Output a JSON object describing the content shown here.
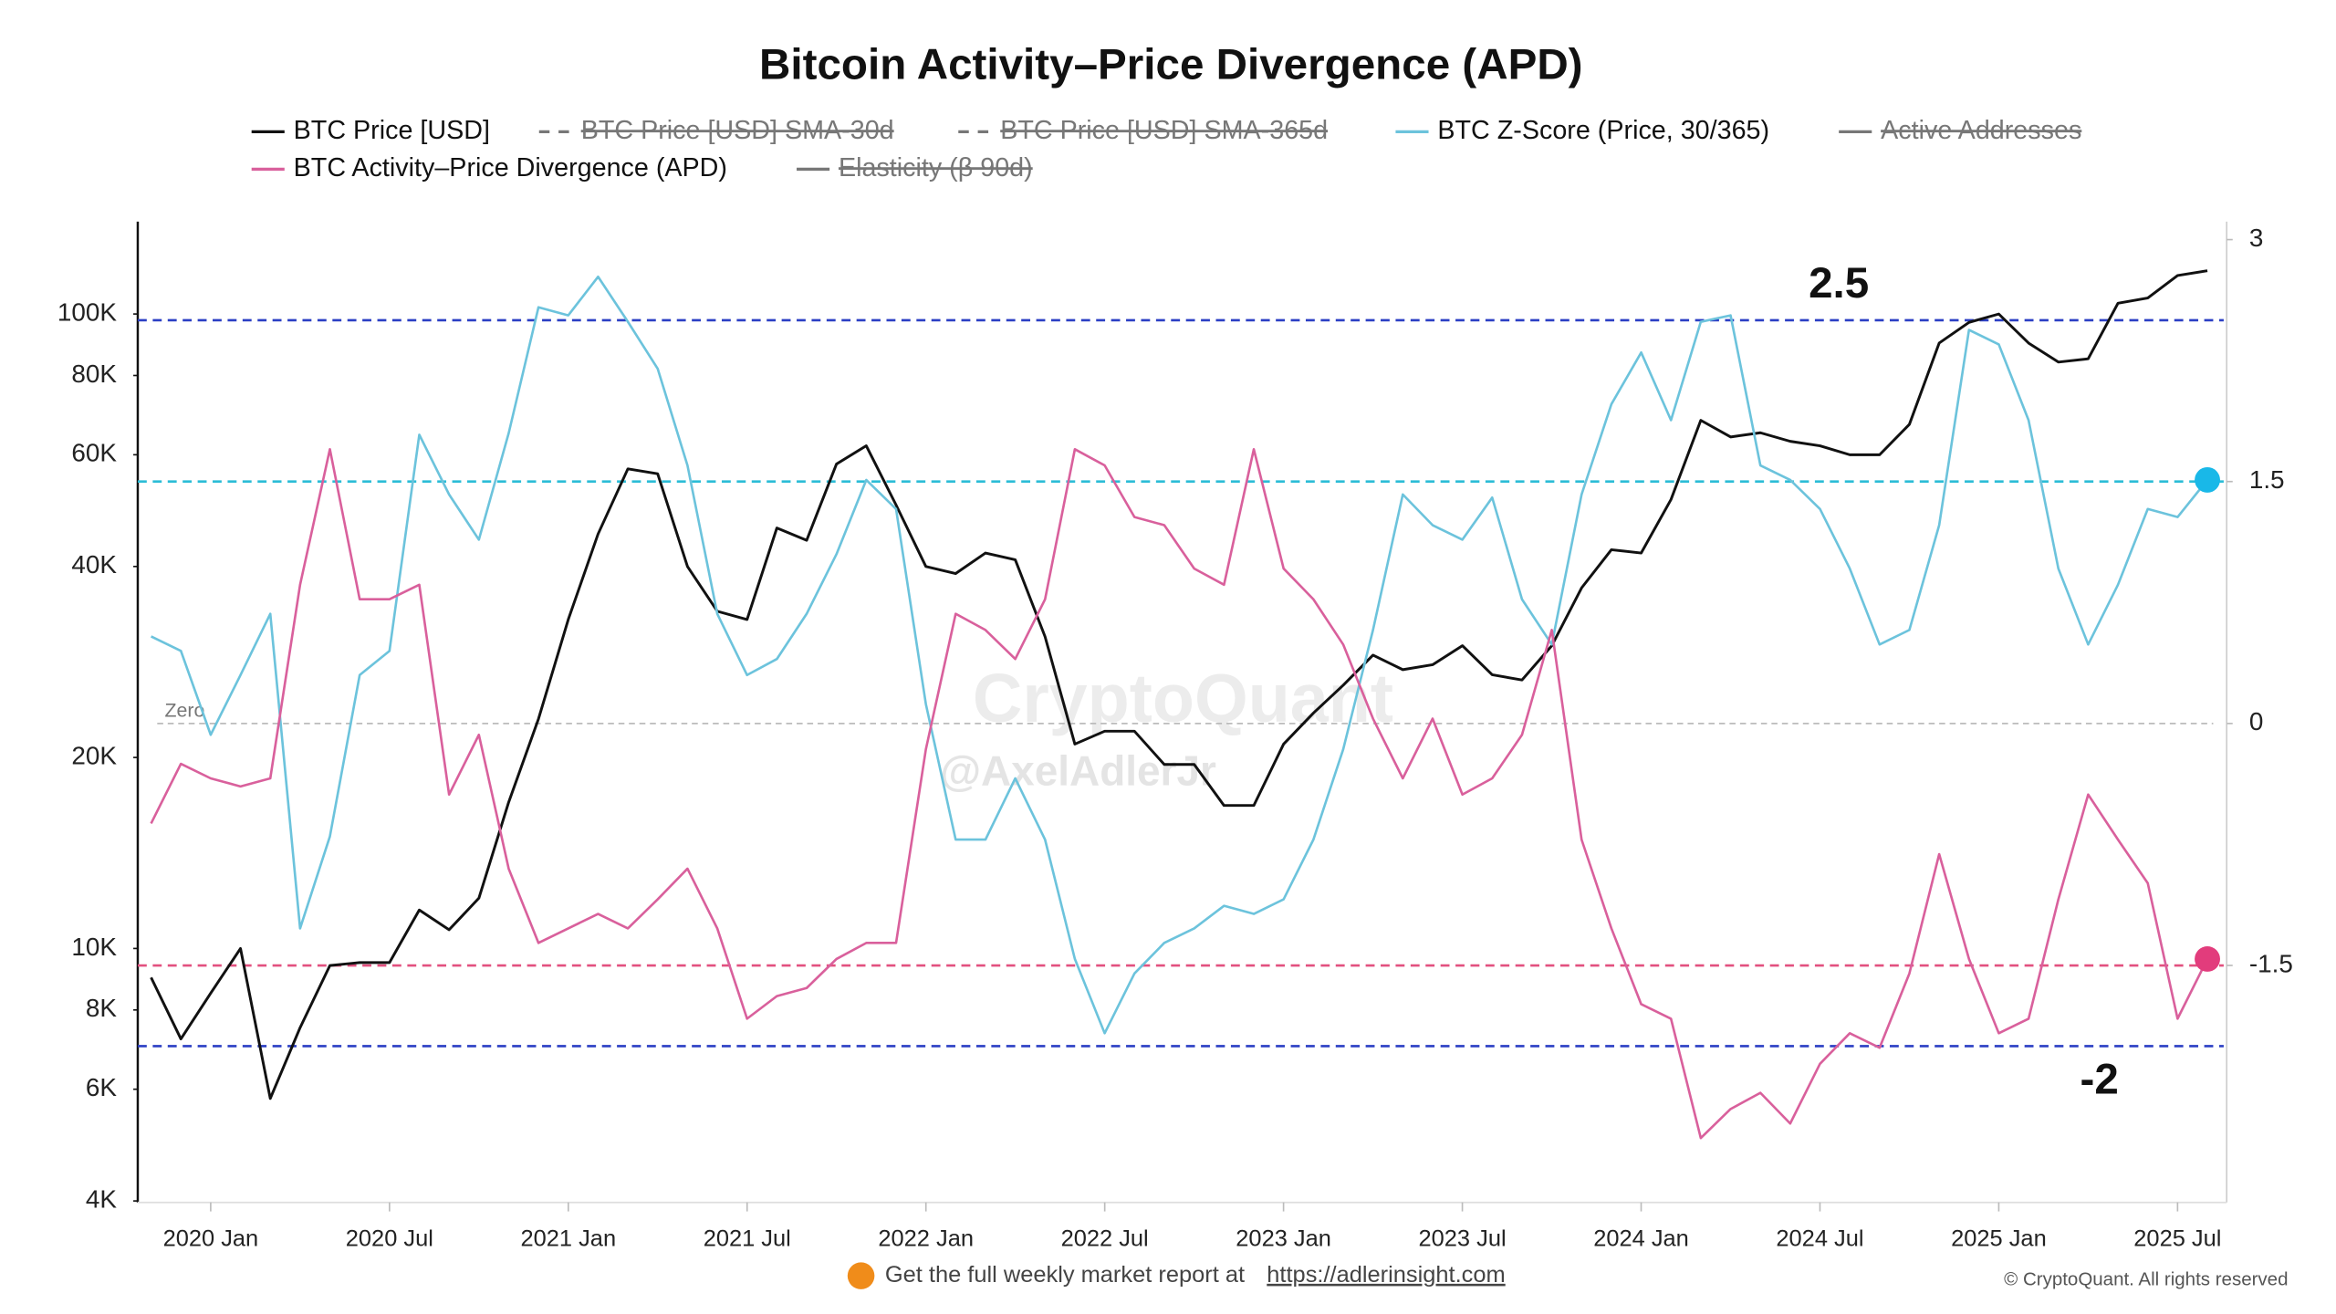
{
  "chart_data": {
    "type": "line",
    "title": "Bitcoin Activity–Price Divergence (APD)",
    "x": [
      "2019-11",
      "2019-12",
      "2020-01",
      "2020-02",
      "2020-03",
      "2020-04",
      "2020-05",
      "2020-06",
      "2020-07",
      "2020-08",
      "2020-09",
      "2020-10",
      "2020-11",
      "2020-12",
      "2021-01",
      "2021-02",
      "2021-03",
      "2021-04",
      "2021-05",
      "2021-06",
      "2021-07",
      "2021-08",
      "2021-09",
      "2021-10",
      "2021-11",
      "2021-12",
      "2022-01",
      "2022-02",
      "2022-03",
      "2022-04",
      "2022-05",
      "2022-06",
      "2022-07",
      "2022-08",
      "2022-09",
      "2022-10",
      "2022-11",
      "2022-12",
      "2023-01",
      "2023-02",
      "2023-03",
      "2023-04",
      "2023-05",
      "2023-06",
      "2023-07",
      "2023-08",
      "2023-09",
      "2023-10",
      "2023-11",
      "2023-12",
      "2024-01",
      "2024-02",
      "2024-03",
      "2024-04",
      "2024-05",
      "2024-06",
      "2024-07",
      "2024-08",
      "2024-09",
      "2024-10",
      "2024-11",
      "2024-12",
      "2025-01",
      "2025-02",
      "2025-03",
      "2025-04",
      "2025-05",
      "2025-06",
      "2025-07",
      "2025-08"
    ],
    "series": [
      {
        "name": "BTC Price [USD]",
        "color": "#111111",
        "axis": "y",
        "values": [
          9000,
          7200,
          8500,
          10000,
          5800,
          7500,
          9400,
          9500,
          9500,
          11500,
          10700,
          12000,
          17000,
          23000,
          33000,
          45000,
          57000,
          56000,
          40000,
          34000,
          33000,
          46000,
          44000,
          58000,
          62000,
          50000,
          40000,
          39000,
          42000,
          41000,
          31000,
          21000,
          22000,
          22000,
          19500,
          19500,
          16800,
          16800,
          21000,
          23500,
          26000,
          29000,
          27500,
          28000,
          30000,
          27000,
          26500,
          30000,
          37000,
          42500,
          42000,
          51000,
          68000,
          64000,
          65000,
          63000,
          62000,
          60000,
          60000,
          67000,
          90000,
          97000,
          100000,
          90000,
          84000,
          85000,
          104000,
          106000,
          115000,
          117000
        ]
      },
      {
        "name": "BTC Price [USD] SMA-30d",
        "color": "#666666",
        "dash": true,
        "hidden": true
      },
      {
        "name": "BTC Price [USD] SMA-365d",
        "color": "#666666",
        "dash": true,
        "hidden": true
      },
      {
        "name": "BTC Z-Score (Price, 30/365)",
        "color": "#6cc3dc",
        "axis": "y2",
        "end_marker_color": "#19b8e8",
        "values": [
          0.54,
          0.45,
          -0.07,
          0.3,
          0.68,
          -1.27,
          -0.7,
          0.3,
          0.45,
          1.79,
          1.42,
          1.14,
          1.8,
          2.58,
          2.53,
          2.77,
          2.49,
          2.2,
          1.6,
          0.68,
          0.3,
          0.4,
          0.68,
          1.05,
          1.51,
          1.33,
          0.12,
          -0.72,
          -0.72,
          -0.34,
          -0.72,
          -1.46,
          -1.92,
          -1.55,
          -1.36,
          -1.27,
          -1.13,
          -1.18,
          -1.09,
          -0.72,
          -0.16,
          0.58,
          1.42,
          1.23,
          1.14,
          1.4,
          0.77,
          0.49,
          1.42,
          1.98,
          2.3,
          1.88,
          2.49,
          2.53,
          1.6,
          1.51,
          1.33,
          0.96,
          0.49,
          0.58,
          1.23,
          2.44,
          2.35,
          1.88,
          0.96,
          0.49,
          0.86,
          1.33,
          1.28,
          1.51
        ]
      },
      {
        "name": "Active Addresses",
        "color": "#666666",
        "hidden": true
      },
      {
        "name": "BTC Activity–Price Divergence (APD)",
        "color": "#d9609c",
        "axis": "y2",
        "end_marker_color": "#e23c7c",
        "values": [
          -0.62,
          -0.25,
          -0.34,
          -0.39,
          -0.34,
          0.86,
          1.7,
          0.77,
          0.77,
          0.86,
          -0.44,
          -0.07,
          -0.9,
          -1.36,
          -1.27,
          -1.18,
          -1.27,
          -1.09,
          -0.9,
          -1.27,
          -1.83,
          -1.69,
          -1.64,
          -1.46,
          -1.36,
          -1.36,
          -0.16,
          0.68,
          0.58,
          0.4,
          0.77,
          1.7,
          1.6,
          1.28,
          1.23,
          0.96,
          0.86,
          1.7,
          0.96,
          0.77,
          0.49,
          0.03,
          -0.34,
          0.03,
          -0.44,
          -0.34,
          -0.07,
          0.58,
          -0.72,
          -1.27,
          -1.74,
          -1.83,
          -2.57,
          -2.39,
          -2.29,
          -2.48,
          -2.11,
          -1.92,
          -2.01,
          -1.55,
          -0.81,
          -1.46,
          -1.92,
          -1.83,
          -1.09,
          -0.44,
          -0.72,
          -0.99,
          -1.83,
          -1.46
        ]
      },
      {
        "name": "Elasticity (β 90d)",
        "color": "#666666",
        "hidden": true
      }
    ],
    "xlim": [
      "2019-10",
      "2025-09"
    ],
    "xticks": [
      {
        "value": "2020-01",
        "label": "2020 Jan"
      },
      {
        "value": "2020-07",
        "label": "2020 Jul"
      },
      {
        "value": "2021-01",
        "label": "2021 Jan"
      },
      {
        "value": "2021-07",
        "label": "2021 Jul"
      },
      {
        "value": "2022-01",
        "label": "2022 Jan"
      },
      {
        "value": "2022-07",
        "label": "2022 Jul"
      },
      {
        "value": "2023-01",
        "label": "2023 Jan"
      },
      {
        "value": "2023-07",
        "label": "2023 Jul"
      },
      {
        "value": "2024-01",
        "label": "2024 Jan"
      },
      {
        "value": "2024-07",
        "label": "2024 Jul"
      },
      {
        "value": "2025-01",
        "label": "2025 Jan"
      },
      {
        "value": "2025-07",
        "label": "2025 Jul"
      }
    ],
    "ylim": [
      4000,
      131000
    ],
    "yscale": "log",
    "yticks": [
      {
        "value": 4000,
        "label": "4K"
      },
      {
        "value": 6000,
        "label": "6K"
      },
      {
        "value": 8000,
        "label": "8K"
      },
      {
        "value": 10000,
        "label": "10K"
      },
      {
        "value": 20000,
        "label": "20K"
      },
      {
        "value": 40000,
        "label": "40K"
      },
      {
        "value": 60000,
        "label": "60K"
      },
      {
        "value": 80000,
        "label": "80K"
      },
      {
        "value": 100000,
        "label": "100K"
      }
    ],
    "y2lim": [
      -2.96,
      3
    ],
    "y2ticks": [
      3,
      1.5,
      0,
      -1.5
    ],
    "reference_lines": [
      {
        "value": 2.5,
        "color": "#2b3fc4",
        "show_value": true
      },
      {
        "value": 1.5,
        "color": "#2bbcd6"
      },
      {
        "value": 0,
        "color": "#bbbbbb",
        "label": "Zero"
      },
      {
        "value": -1.5,
        "color": "#e2507f"
      },
      {
        "value": -2,
        "color": "#2b3fc4",
        "show_value": true
      }
    ],
    "watermark": [
      "CryptoQuant",
      "@AxelAdlerJr"
    ],
    "footer": {
      "text": "Get the full weekly market report at",
      "link": "https://adlerinsight.com",
      "copyright": "© CryptoQuant. All rights reserved"
    }
  }
}
